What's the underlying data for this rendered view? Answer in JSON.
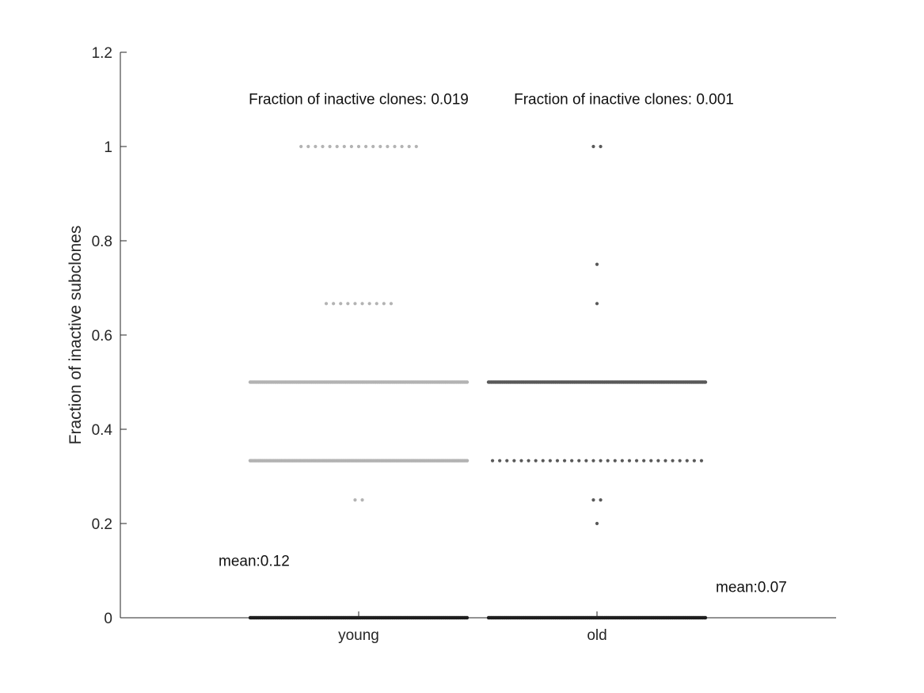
{
  "chart_data": {
    "type": "scatter",
    "title": "",
    "xlabel": "",
    "ylabel": "Fraction of inactive subclones",
    "categories": [
      "young",
      "old"
    ],
    "ylim": [
      0,
      1.2
    ],
    "yticks": [
      "0",
      "0.2",
      "0.4",
      "0.6",
      "0.8",
      "1",
      "1.2"
    ],
    "grid": false,
    "legend": "none",
    "colors": {
      "young": "#b3b3b3",
      "old": "#595959",
      "axis": "#262626"
    },
    "series": [
      {
        "category": "young",
        "levels": [
          {
            "y": 1.0,
            "count": 17
          },
          {
            "y": 0.6667,
            "count": 10
          },
          {
            "y": 0.5,
            "count": 500
          },
          {
            "y": 0.3333,
            "count": 45
          },
          {
            "y": 0.25,
            "count": 2
          },
          {
            "y": 0.0,
            "count": 600
          }
        ]
      },
      {
        "category": "old",
        "levels": [
          {
            "y": 1.0,
            "count": 2
          },
          {
            "y": 0.75,
            "count": 1
          },
          {
            "y": 0.6667,
            "count": 1
          },
          {
            "y": 0.5,
            "count": 700
          },
          {
            "y": 0.3333,
            "count": 30
          },
          {
            "y": 0.25,
            "count": 2
          },
          {
            "y": 0.2,
            "count": 1
          },
          {
            "y": 0.0,
            "count": 900
          }
        ]
      }
    ],
    "annotations": [
      {
        "id": "young_inactive",
        "text": "Fraction of inactive clones: 0.019",
        "category": "young",
        "y": 1.1
      },
      {
        "id": "old_inactive",
        "text": "Fraction of inactive clones: 0.001",
        "category": "old",
        "y": 1.1
      },
      {
        "id": "young_mean",
        "text": "mean:0.12",
        "category": "young",
        "y": 0.12
      },
      {
        "id": "old_mean",
        "text": "mean:0.07",
        "category": "old",
        "y": 0.065
      }
    ]
  }
}
